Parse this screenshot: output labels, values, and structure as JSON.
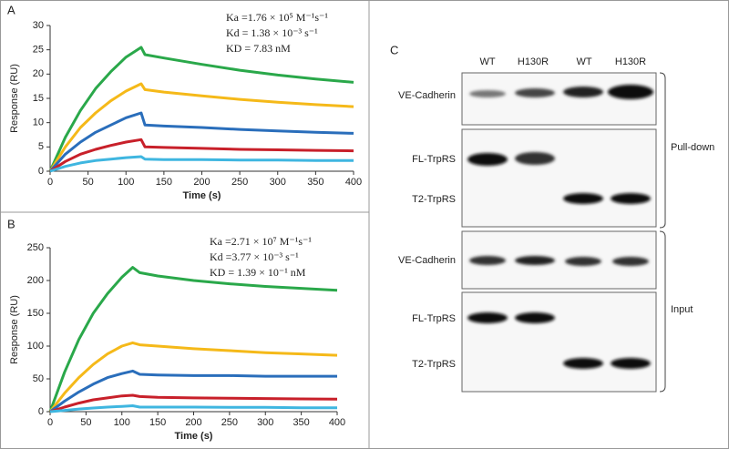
{
  "chart_data": [
    {
      "type": "line",
      "panel": "A",
      "xlabel": "Time (s)",
      "ylabel": "Response (RU)",
      "annotations": [
        "Ka =1.76 × 10⁵ M⁻¹s⁻¹",
        "Kd = 1.38 × 10⁻³ s⁻¹",
        "KD = 7.83 nM"
      ],
      "x": [
        0,
        20,
        40,
        60,
        80,
        100,
        120,
        125,
        150,
        200,
        250,
        300,
        350,
        400
      ],
      "xlim": [
        0,
        400
      ],
      "xticks": [
        0,
        50,
        100,
        150,
        200,
        250,
        300,
        350,
        400
      ],
      "ylim": [
        0,
        30
      ],
      "yticks": [
        0,
        5,
        10,
        15,
        20,
        25,
        30
      ],
      "series": [
        {
          "color": "#2aa84a",
          "values": [
            0,
            7,
            12.5,
            17,
            20.5,
            23.5,
            25.5,
            24,
            23.3,
            22,
            20.8,
            19.8,
            19,
            18.3
          ]
        },
        {
          "color": "#f5b919",
          "values": [
            0,
            5,
            9,
            12,
            14.5,
            16.5,
            18,
            16.8,
            16.3,
            15.5,
            14.8,
            14.2,
            13.7,
            13.3
          ]
        },
        {
          "color": "#2a6ebb",
          "values": [
            0,
            3.5,
            6,
            8,
            9.5,
            11,
            12,
            9.5,
            9.3,
            9,
            8.6,
            8.3,
            8,
            7.8
          ]
        },
        {
          "color": "#c8202a",
          "values": [
            0,
            2,
            3.5,
            4.5,
            5.3,
            6,
            6.5,
            5,
            4.9,
            4.7,
            4.5,
            4.4,
            4.3,
            4.2
          ]
        },
        {
          "color": "#3fb6e0",
          "values": [
            0,
            1,
            1.7,
            2.2,
            2.5,
            2.8,
            3,
            2.5,
            2.4,
            2.4,
            2.3,
            2.3,
            2.2,
            2.2
          ]
        }
      ]
    },
    {
      "type": "line",
      "panel": "B",
      "xlabel": "Time (s)",
      "ylabel": "Response (RU)",
      "annotations": [
        "Ka =2.71 × 10⁷ M⁻¹s⁻¹",
        "Kd =3.77 × 10⁻³ s⁻¹",
        "KD = 1.39 × 10⁻¹ nM"
      ],
      "x": [
        0,
        20,
        40,
        60,
        80,
        100,
        115,
        125,
        150,
        200,
        250,
        300,
        350,
        400
      ],
      "xlim": [
        0,
        400
      ],
      "xticks": [
        0,
        50,
        100,
        150,
        200,
        250,
        300,
        350,
        400
      ],
      "ylim": [
        0,
        250
      ],
      "yticks": [
        0,
        50,
        100,
        150,
        200,
        250
      ],
      "series": [
        {
          "color": "#2aa84a",
          "values": [
            0,
            60,
            110,
            150,
            180,
            205,
            220,
            212,
            207,
            200,
            195,
            191,
            188,
            185
          ]
        },
        {
          "color": "#f5b919",
          "values": [
            0,
            28,
            52,
            72,
            88,
            100,
            105,
            102,
            100,
            96,
            93,
            90,
            88,
            86
          ]
        },
        {
          "color": "#2a6ebb",
          "values": [
            0,
            16,
            30,
            42,
            52,
            58,
            62,
            57,
            56,
            55,
            55,
            54,
            54,
            54
          ]
        },
        {
          "color": "#c8202a",
          "values": [
            0,
            7,
            13,
            18,
            21,
            24,
            25,
            23,
            22,
            21,
            20.5,
            20,
            19.5,
            19
          ]
        },
        {
          "color": "#3fb6e0",
          "values": [
            0,
            2,
            4,
            5.5,
            7,
            8,
            9,
            7,
            7,
            7,
            6.5,
            6.5,
            6,
            6
          ]
        }
      ]
    }
  ],
  "blot": {
    "panel": "C",
    "columns": [
      "WT",
      "H130R",
      "WT",
      "H130R"
    ],
    "rows": [
      "VE-Cadherin",
      "FL-TrpRS",
      "T2-TrpRS",
      "VE-Cadherin",
      "FL-TrpRS",
      "T2-TrpRS"
    ],
    "groups": [
      "Pull-down",
      "Input"
    ]
  }
}
